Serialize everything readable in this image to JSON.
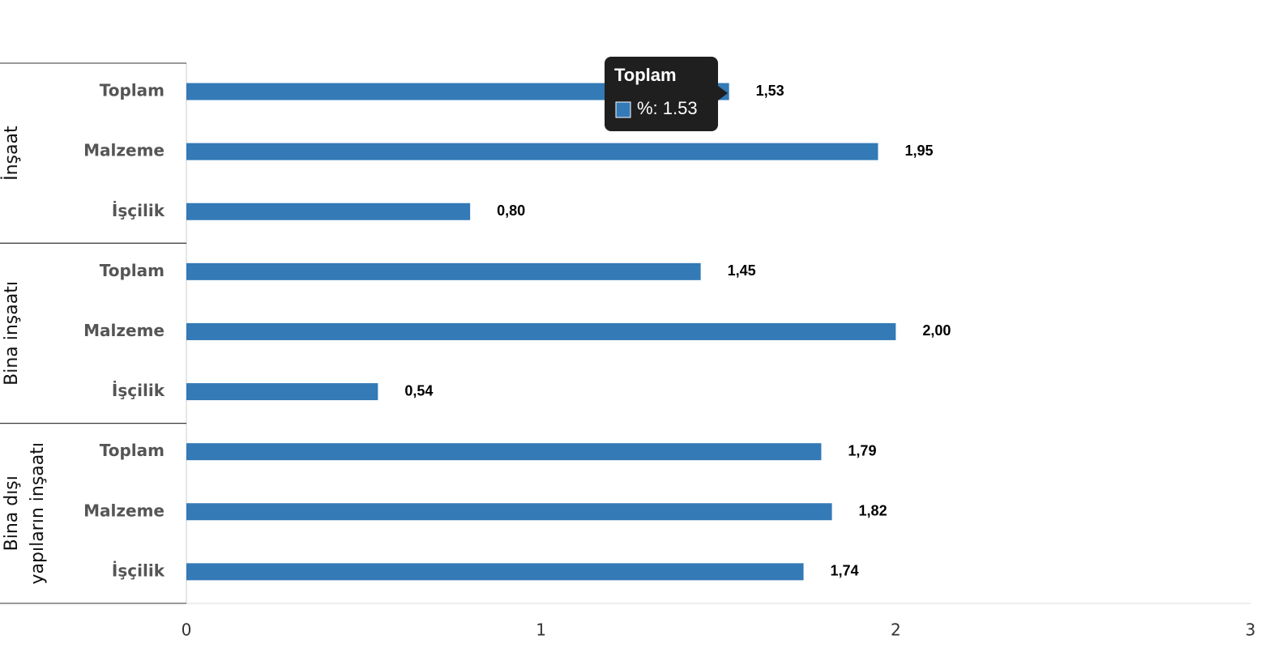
{
  "chart_data": {
    "type": "bar",
    "orientation": "horizontal",
    "color": "#337ab7",
    "xlim": [
      0,
      3
    ],
    "xticks": [
      0,
      1,
      2,
      3
    ],
    "groups": [
      {
        "label": [
          "İnşaat"
        ],
        "categories": [
          "Toplam",
          "Malzeme",
          "İşçilik"
        ],
        "values": [
          1.53,
          1.95,
          0.8
        ],
        "value_labels": [
          "1,53",
          "1,95",
          "0,80"
        ]
      },
      {
        "label": [
          "Bina inşaatı"
        ],
        "categories": [
          "Toplam",
          "Malzeme",
          "İşçilik"
        ],
        "values": [
          1.45,
          2.0,
          0.54
        ],
        "value_labels": [
          "1,45",
          "2,00",
          "0,54"
        ]
      },
      {
        "label": [
          "Bina dışı",
          "yapıların inşaatı"
        ],
        "categories": [
          "Toplam",
          "Malzeme",
          "İşçilik"
        ],
        "values": [
          1.79,
          1.82,
          1.74
        ],
        "value_labels": [
          "1,79",
          "1,82",
          "1,74"
        ]
      }
    ],
    "tooltip": {
      "title": "Toplam",
      "text": "%: 1.53"
    }
  }
}
